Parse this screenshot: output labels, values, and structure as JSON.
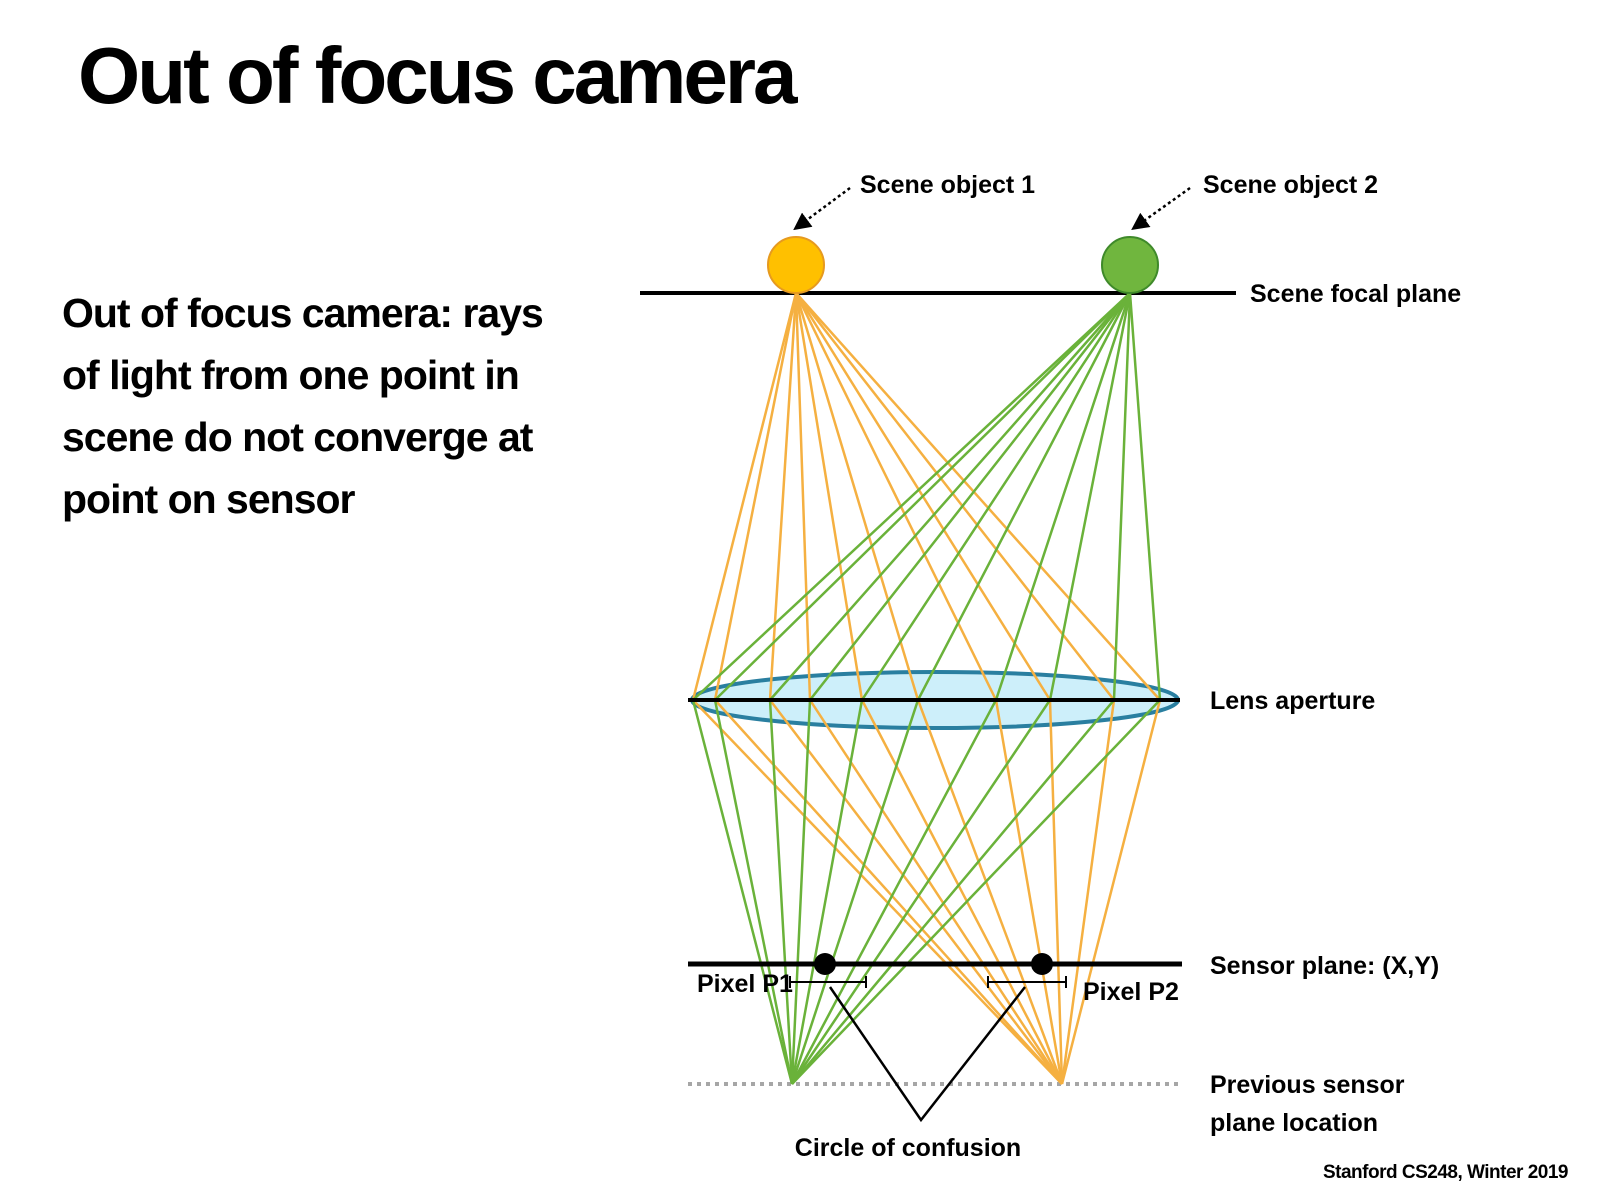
{
  "slide": {
    "title": "Out of focus camera",
    "body": "Out of focus camera: rays of light from one point in scene do not converge at point on sensor",
    "footer": "Stanford CS248, Winter 2019"
  },
  "diagram": {
    "labels": {
      "scene_object_1": "Scene object 1",
      "scene_object_2": "Scene object 2",
      "scene_focal_plane": "Scene focal plane",
      "lens_aperture": "Lens aperture",
      "sensor_plane": "Sensor plane: (X,Y)",
      "pixel_p1": "Pixel P1",
      "pixel_p2": "Pixel P2",
      "previous_sensor_line1": "Previous sensor",
      "previous_sensor_line2": "plane location",
      "circle_of_confusion": "Circle of confusion"
    },
    "colors": {
      "object_1": "#FFC000",
      "object_2": "#70B63E",
      "ray_1": "#F5B041",
      "ray_2": "#6AB23A",
      "lens_fill": "#CDEFFA",
      "lens_stroke": "#2A7FA0"
    }
  }
}
